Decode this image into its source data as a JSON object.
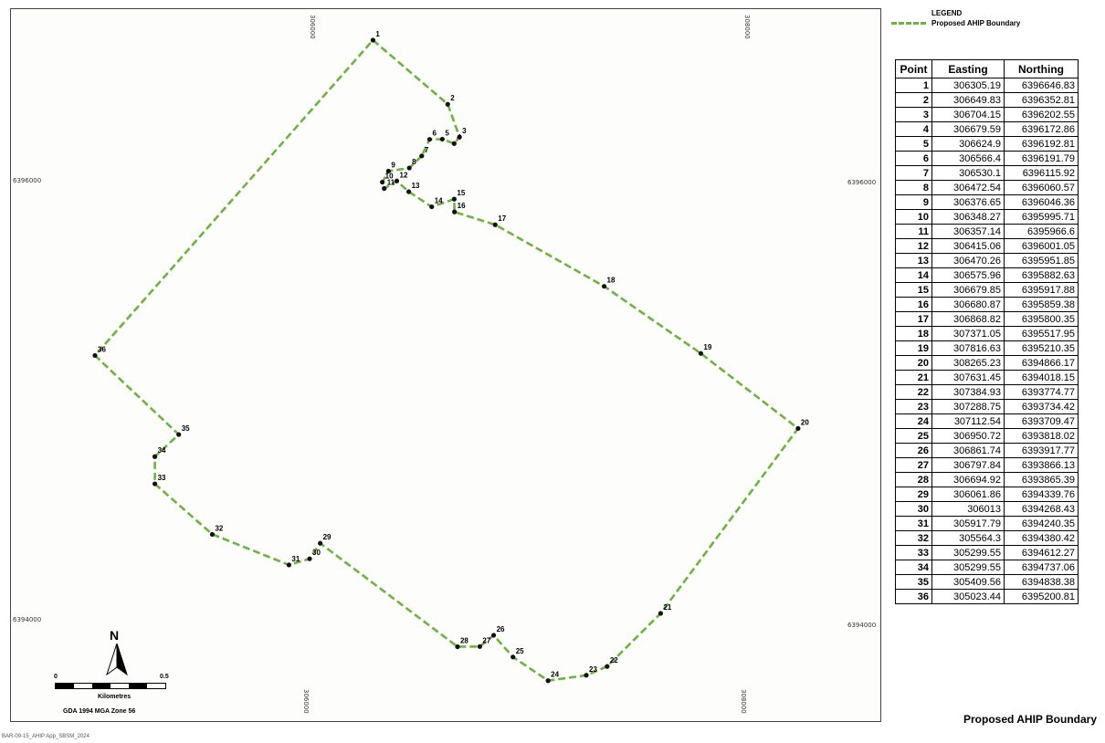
{
  "legend": {
    "title": "LEGEND",
    "label": "Proposed AHIP Boundary",
    "line_color": "#6cb33f"
  },
  "map_title": "Proposed AHIP Boundary",
  "file_ref": "BAR-09-15_AHIP App_SBSM_2024",
  "scale": {
    "north": "N",
    "zero": "0",
    "max": "0.5",
    "unit": "Kilometres",
    "projection": "GDA 1994 MGA Zone 56"
  },
  "grid_labels": {
    "top_left": "306000",
    "top_right": "308000",
    "bottom_left": "306000",
    "bottom_right": "308000",
    "left_upper": "6396000",
    "left_lower": "6394000",
    "right_upper": "6396000",
    "right_lower": "6394000"
  },
  "table": {
    "headers": [
      "Point",
      "Easting",
      "Northing"
    ],
    "rows": [
      [
        "1",
        "306305.19",
        "6396646.83"
      ],
      [
        "2",
        "306649.83",
        "6396352.81"
      ],
      [
        "3",
        "306704.15",
        "6396202.55"
      ],
      [
        "4",
        "306679.59",
        "6396172.86"
      ],
      [
        "5",
        "306624.9",
        "6396192.81"
      ],
      [
        "6",
        "306566.4",
        "6396191.79"
      ],
      [
        "7",
        "306530.1",
        "6396115.92"
      ],
      [
        "8",
        "306472.54",
        "6396060.57"
      ],
      [
        "9",
        "306376.65",
        "6396046.36"
      ],
      [
        "10",
        "306348.27",
        "6395995.71"
      ],
      [
        "11",
        "306357.14",
        "6395966.6"
      ],
      [
        "12",
        "306415.06",
        "6396001.05"
      ],
      [
        "13",
        "306470.26",
        "6395951.85"
      ],
      [
        "14",
        "306575.96",
        "6395882.63"
      ],
      [
        "15",
        "306679.85",
        "6395917.88"
      ],
      [
        "16",
        "306680.87",
        "6395859.38"
      ],
      [
        "17",
        "306868.82",
        "6395800.35"
      ],
      [
        "18",
        "307371.05",
        "6395517.95"
      ],
      [
        "19",
        "307816.63",
        "6395210.35"
      ],
      [
        "20",
        "308265.23",
        "6394866.17"
      ],
      [
        "21",
        "307631.45",
        "6394018.15"
      ],
      [
        "22",
        "307384.93",
        "6393774.77"
      ],
      [
        "23",
        "307288.75",
        "6393734.42"
      ],
      [
        "24",
        "307112.54",
        "6393709.47"
      ],
      [
        "25",
        "306950.72",
        "6393818.02"
      ],
      [
        "26",
        "306861.74",
        "6393917.77"
      ],
      [
        "27",
        "306797.84",
        "6393866.13"
      ],
      [
        "28",
        "306694.92",
        "6393865.39"
      ],
      [
        "29",
        "306061.86",
        "6394339.76"
      ],
      [
        "30",
        "306013",
        "6394268.43"
      ],
      [
        "31",
        "305917.79",
        "6394240.35"
      ],
      [
        "32",
        "305564.3",
        "6394380.42"
      ],
      [
        "33",
        "305299.55",
        "6394612.27"
      ],
      [
        "34",
        "305299.55",
        "6394737.06"
      ],
      [
        "35",
        "305409.56",
        "6394838.38"
      ],
      [
        "36",
        "305023.44",
        "6395200.81"
      ]
    ]
  }
}
